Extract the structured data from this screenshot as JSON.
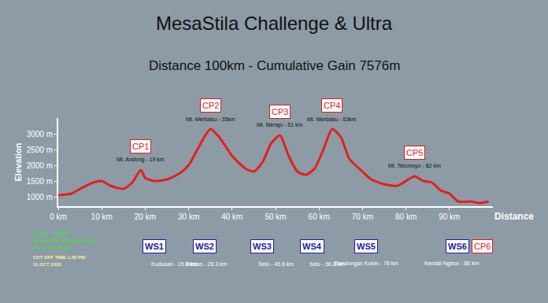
{
  "chart_data": {
    "type": "line",
    "title": "MesaStila Challenge & Ultra",
    "subtitle": "Distance 100km - Cumulative Gain 7576m",
    "x_label": "Distance",
    "y_label": "Elevation",
    "color": "#e3201b",
    "x": [
      0,
      3,
      5,
      8,
      10,
      12,
      15,
      17,
      19,
      20,
      22,
      25,
      28,
      30,
      32,
      35,
      37,
      40,
      43,
      45,
      47,
      49,
      51,
      53,
      55,
      57,
      59,
      61,
      63,
      65,
      67,
      70,
      72,
      75,
      78,
      80,
      82,
      84,
      86,
      88,
      90,
      92,
      95,
      97,
      99
    ],
    "values": [
      1050,
      1100,
      1250,
      1450,
      1500,
      1350,
      1250,
      1450,
      1850,
      1600,
      1500,
      1550,
      1750,
      2000,
      2500,
      3150,
      2900,
      2300,
      1900,
      1800,
      2100,
      2700,
      2950,
      2300,
      1800,
      1700,
      1900,
      2500,
      3150,
      2900,
      2200,
      1800,
      1550,
      1400,
      1350,
      1500,
      1650,
      1500,
      1450,
      1200,
      1100,
      850,
      850,
      800,
      850
    ],
    "xlim": [
      0,
      100
    ],
    "xticks": [
      {
        "value": 0,
        "label": "0 km"
      },
      {
        "value": 10,
        "label": "10 km"
      },
      {
        "value": 20,
        "label": "20 km"
      },
      {
        "value": 30,
        "label": "30 km"
      },
      {
        "value": 40,
        "label": "40 km"
      },
      {
        "value": 50,
        "label": "50 km"
      },
      {
        "value": 60,
        "label": "60 km"
      },
      {
        "value": 70,
        "label": "70 km"
      },
      {
        "value": 80,
        "label": "80 km"
      },
      {
        "value": 90,
        "label": "90 km"
      }
    ],
    "ylim": [
      700,
      3500
    ],
    "yticks": [
      {
        "value": 1000,
        "label": "1000 m"
      },
      {
        "value": 1500,
        "label": "1500 m"
      },
      {
        "value": 2000,
        "label": "2000 m"
      },
      {
        "value": 2500,
        "label": "2500 m"
      },
      {
        "value": 3000,
        "label": "3000 m"
      }
    ],
    "grid": false,
    "checkpoints": [
      {
        "label": "CP1",
        "text": "Mt. Andong - 19 km",
        "x": 19
      },
      {
        "label": "CP2",
        "text": "Mt. Merbabu - 35km",
        "x": 35
      },
      {
        "label": "CP3",
        "text": "Mt. Merapi - 51 km",
        "x": 51
      },
      {
        "label": "CP4",
        "text": "Mt. Merbabu - 63km",
        "x": 63
      },
      {
        "label": "CP5",
        "text": "Mt. Telomoyo - 82 km",
        "x": 82
      }
    ],
    "water_stations": [
      {
        "label": "WS1",
        "text": "Kudusan - 15.8 km"
      },
      {
        "label": "WS2",
        "text": "Wekas - 28.3 km"
      },
      {
        "label": "WS3",
        "text": "Selo - 45.8 km"
      },
      {
        "label": "WS4",
        "text": "Selo - 56.8 km"
      },
      {
        "label": "WS5",
        "text": "Bandongan Kulon - 78 km"
      },
      {
        "label": "WS6",
        "text": "Kendal Ngisor - 88 km",
        "checkpoint": "CP6"
      }
    ],
    "start_info": [
      "START - FINISH",
      "MESASTILA RESORT & SPA",
      "km 0-100 / 7576 m"
    ],
    "cutoff_info": [
      "CUT OFF TIME 1.00 PM",
      "11 OCT 2015"
    ]
  }
}
